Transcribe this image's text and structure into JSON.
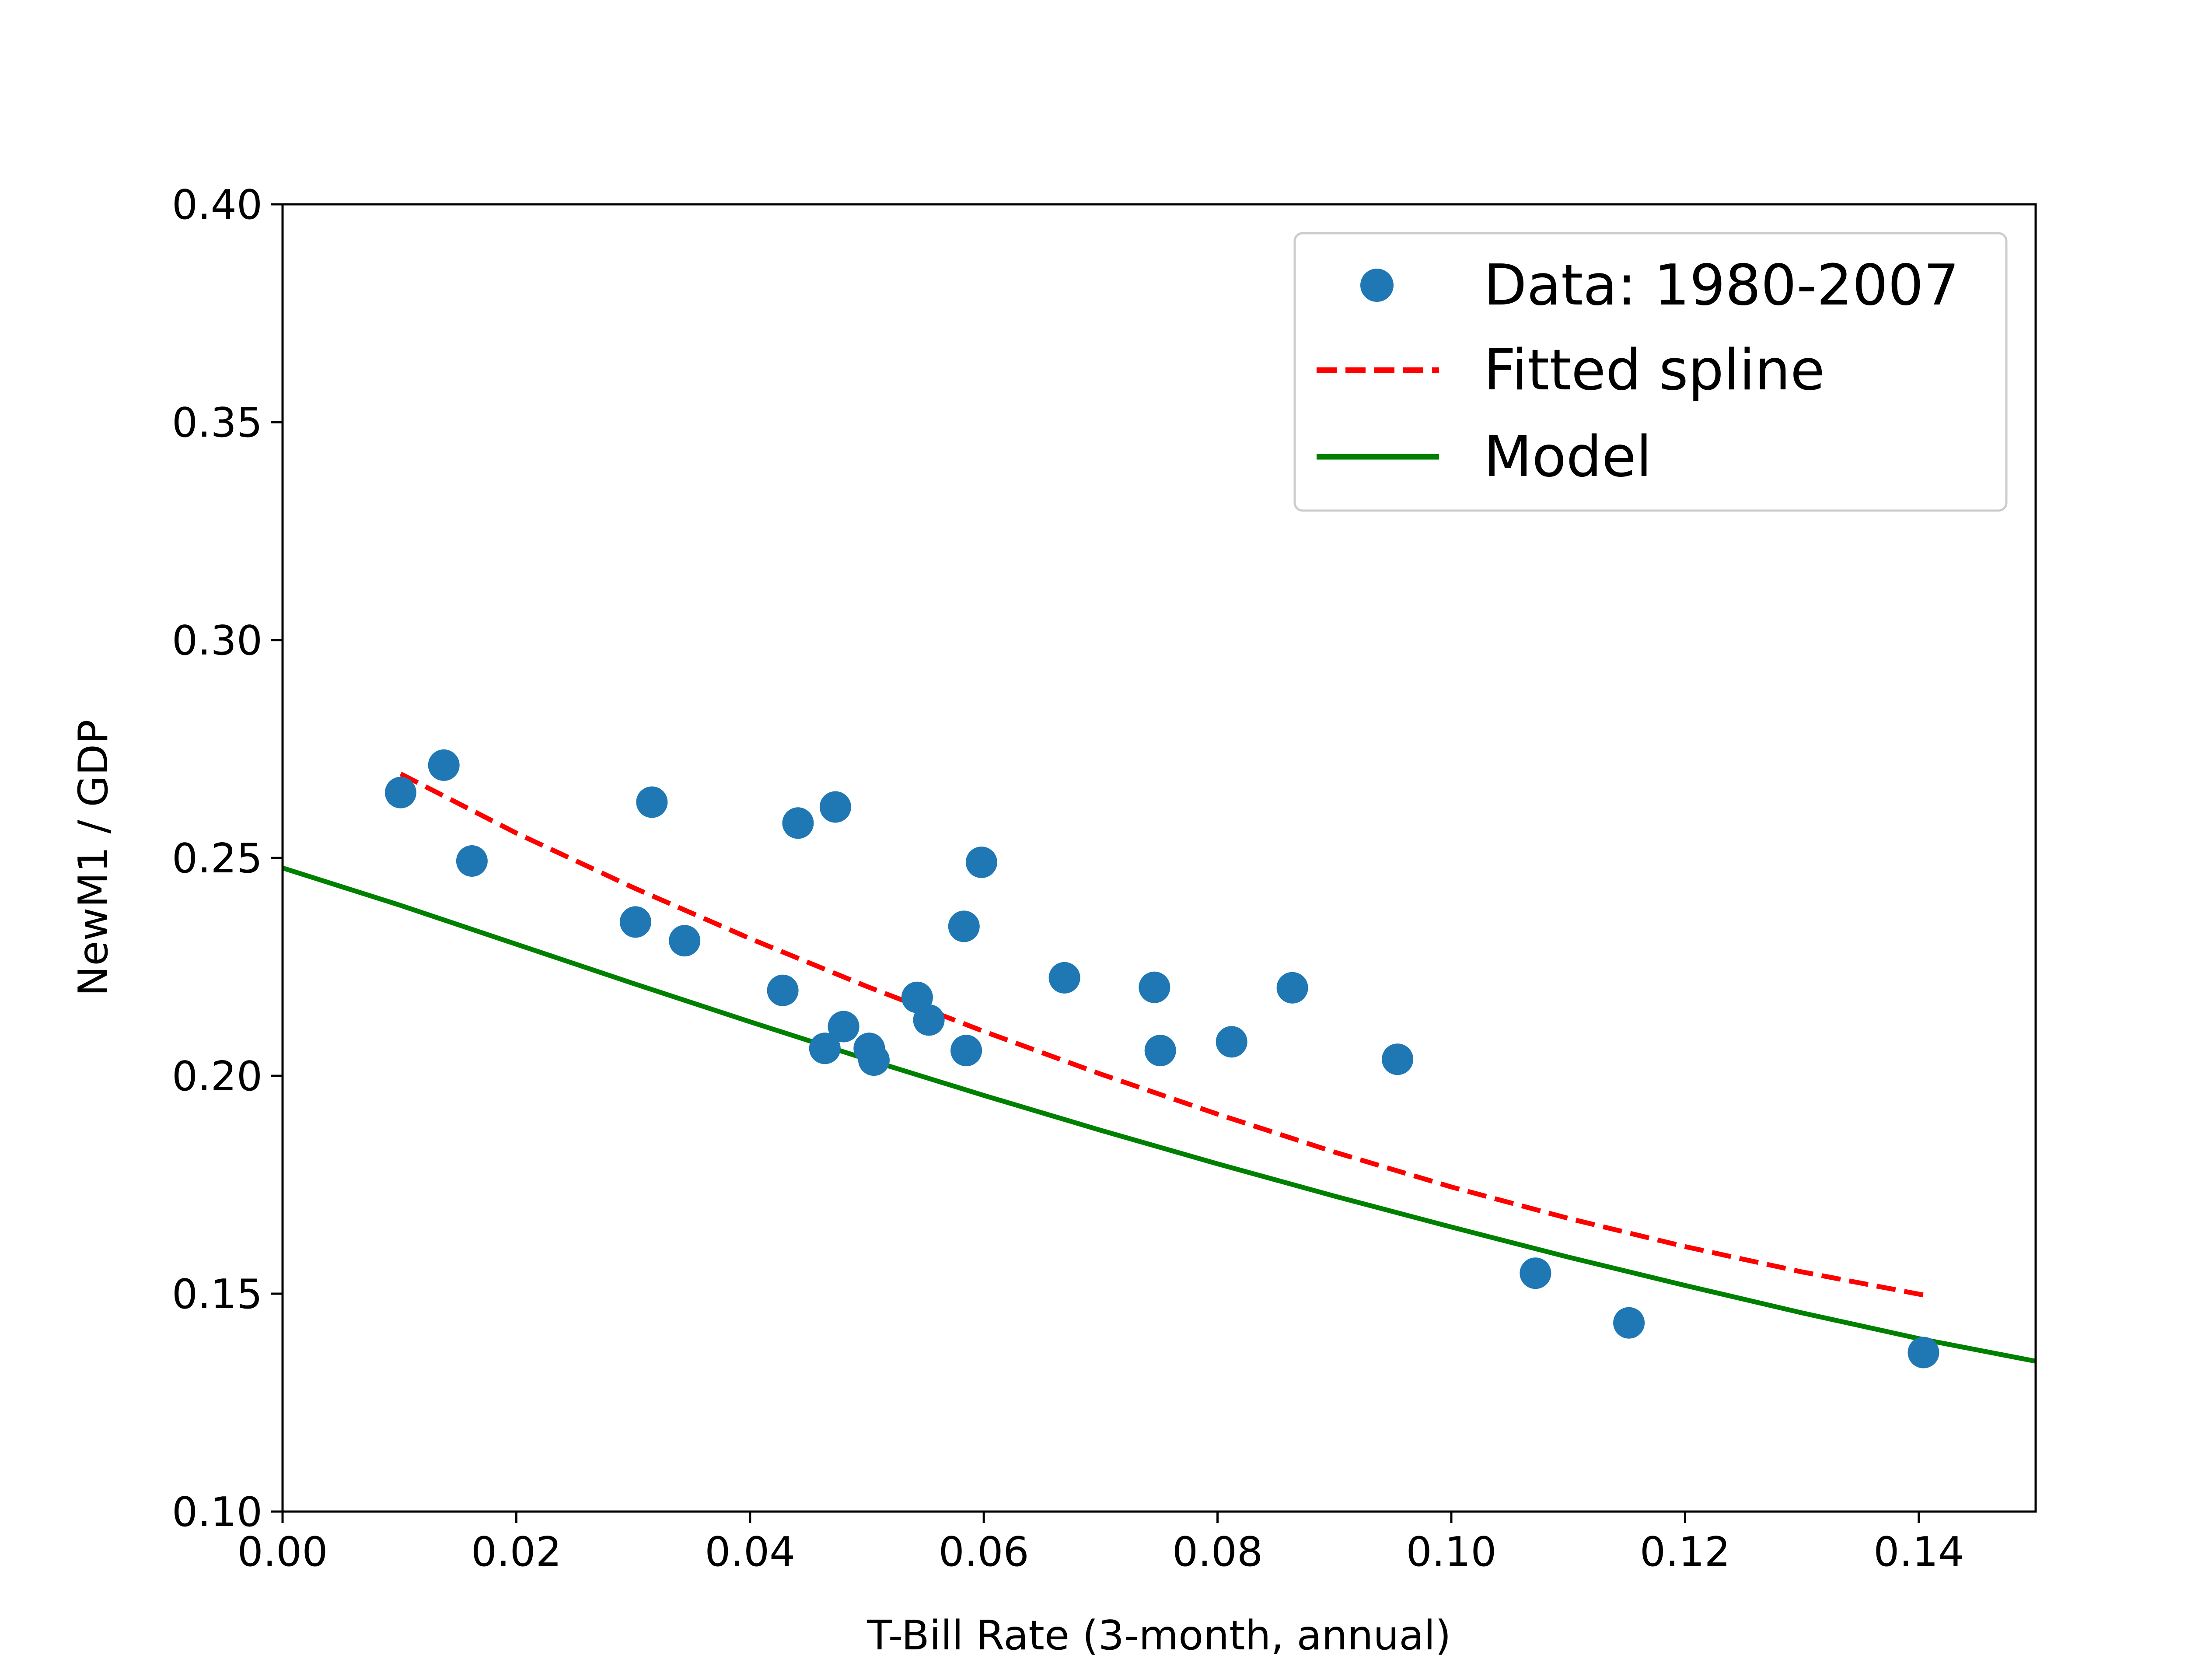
{
  "chart_data": {
    "type": "scatter",
    "title": "",
    "xlabel": "T-Bill Rate (3-month, annual)",
    "ylabel": "NewM1 / GDP",
    "xlim": [
      0.0,
      0.15
    ],
    "ylim": [
      0.1,
      0.4
    ],
    "xticks": [
      "0.00",
      "0.02",
      "0.04",
      "0.06",
      "0.08",
      "0.10",
      "0.12",
      "0.14"
    ],
    "yticks": [
      "0.10",
      "0.15",
      "0.20",
      "0.25",
      "0.30",
      "0.35",
      "0.40"
    ],
    "grid": false,
    "legend_position": "top-right",
    "series": [
      {
        "name": "Data: 1980-2007",
        "kind": "scatter",
        "color": "#1f77b4",
        "points": [
          {
            "x": 0.0101,
            "y": 0.265
          },
          {
            "x": 0.0138,
            "y": 0.2713
          },
          {
            "x": 0.0162,
            "y": 0.2493
          },
          {
            "x": 0.0302,
            "y": 0.2353
          },
          {
            "x": 0.0316,
            "y": 0.2628
          },
          {
            "x": 0.0344,
            "y": 0.231
          },
          {
            "x": 0.0428,
            "y": 0.2196
          },
          {
            "x": 0.0441,
            "y": 0.258
          },
          {
            "x": 0.0464,
            "y": 0.2063
          },
          {
            "x": 0.0473,
            "y": 0.2617
          },
          {
            "x": 0.048,
            "y": 0.2113
          },
          {
            "x": 0.0502,
            "y": 0.2063
          },
          {
            "x": 0.0506,
            "y": 0.2036
          },
          {
            "x": 0.0543,
            "y": 0.218
          },
          {
            "x": 0.0553,
            "y": 0.2128
          },
          {
            "x": 0.0583,
            "y": 0.2343
          },
          {
            "x": 0.0585,
            "y": 0.2058
          },
          {
            "x": 0.0598,
            "y": 0.249
          },
          {
            "x": 0.0669,
            "y": 0.2225
          },
          {
            "x": 0.0746,
            "y": 0.2203
          },
          {
            "x": 0.0751,
            "y": 0.2058
          },
          {
            "x": 0.0812,
            "y": 0.2078
          },
          {
            "x": 0.0864,
            "y": 0.2202
          },
          {
            "x": 0.0954,
            "y": 0.2038
          },
          {
            "x": 0.1072,
            "y": 0.1547
          },
          {
            "x": 0.1152,
            "y": 0.1433
          },
          {
            "x": 0.1404,
            "y": 0.1365
          }
        ]
      },
      {
        "name": "Fitted spline",
        "kind": "line",
        "style": "dashed",
        "color": "#ff0000",
        "points": [
          {
            "x": 0.0101,
            "y": 0.2693
          },
          {
            "x": 0.02,
            "y": 0.2557
          },
          {
            "x": 0.03,
            "y": 0.2432
          },
          {
            "x": 0.04,
            "y": 0.2315
          },
          {
            "x": 0.05,
            "y": 0.2205
          },
          {
            "x": 0.06,
            "y": 0.2102
          },
          {
            "x": 0.07,
            "y": 0.2004
          },
          {
            "x": 0.08,
            "y": 0.1912
          },
          {
            "x": 0.09,
            "y": 0.1825
          },
          {
            "x": 0.1,
            "y": 0.1745
          },
          {
            "x": 0.11,
            "y": 0.1673
          },
          {
            "x": 0.12,
            "y": 0.1608
          },
          {
            "x": 0.13,
            "y": 0.155
          },
          {
            "x": 0.1404,
            "y": 0.1497
          }
        ]
      },
      {
        "name": "Model",
        "kind": "line",
        "style": "solid",
        "color": "#008000",
        "points": [
          {
            "x": 0.0,
            "y": 0.2477
          },
          {
            "x": 0.01,
            "y": 0.2392
          },
          {
            "x": 0.02,
            "y": 0.2302
          },
          {
            "x": 0.03,
            "y": 0.2212
          },
          {
            "x": 0.04,
            "y": 0.2124
          },
          {
            "x": 0.05,
            "y": 0.2038
          },
          {
            "x": 0.06,
            "y": 0.1955
          },
          {
            "x": 0.07,
            "y": 0.1875
          },
          {
            "x": 0.08,
            "y": 0.1798
          },
          {
            "x": 0.09,
            "y": 0.1724
          },
          {
            "x": 0.1,
            "y": 0.1653
          },
          {
            "x": 0.11,
            "y": 0.1584
          },
          {
            "x": 0.12,
            "y": 0.1519
          },
          {
            "x": 0.13,
            "y": 0.1456
          },
          {
            "x": 0.14,
            "y": 0.1397
          },
          {
            "x": 0.15,
            "y": 0.1345
          }
        ]
      }
    ]
  }
}
